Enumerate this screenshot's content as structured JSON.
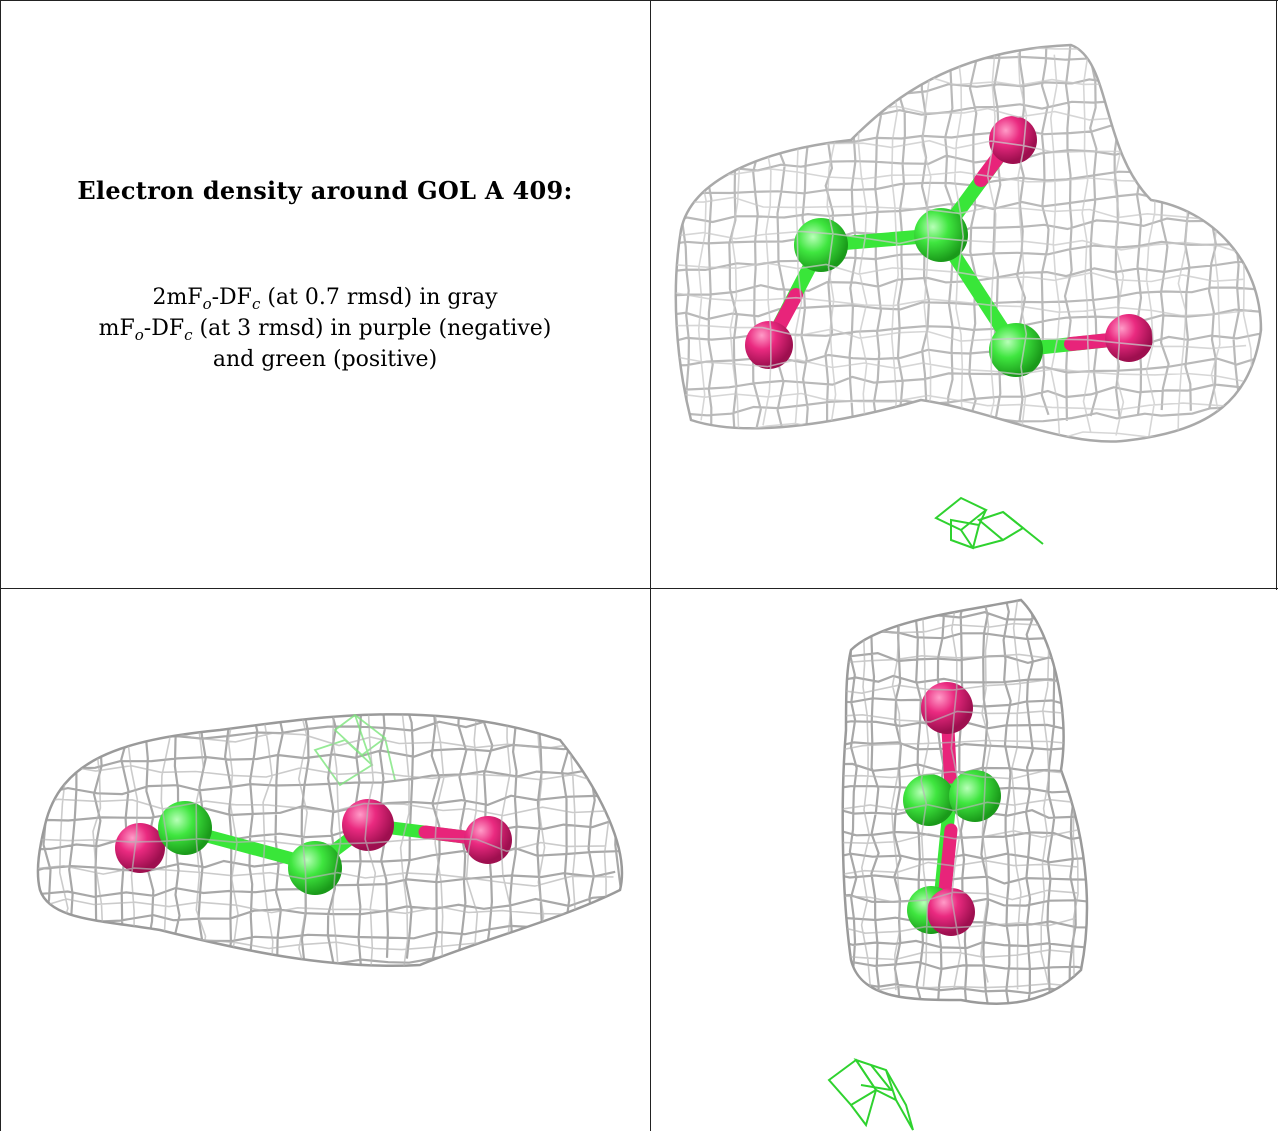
{
  "panel_text": {
    "title": "Electron density around GOL A 409:",
    "line1_prefix": "2mF",
    "line1_sub1": "o",
    "line1_mid": "-DF",
    "line1_sub2": "c",
    "line1_suffix": " (at 0.7 rmsd) in gray",
    "line2_prefix": "mF",
    "line2_sub1": "o",
    "line2_mid": "-DF",
    "line2_sub2": "c",
    "line2_suffix": " (at 3 rmsd) in purple (negative)",
    "line3": "and green (positive)"
  },
  "colors": {
    "mesh_gray": "#b9b9b9",
    "mesh_dark": "#8f8f8f",
    "carbon_green": "#39e639",
    "oxygen_pink": "#e8247a",
    "positive_density_green": "#2fd22f",
    "grid_line": "#222222"
  },
  "views": [
    {
      "name": "top-right view"
    },
    {
      "name": "bottom-left view"
    },
    {
      "name": "bottom-right view"
    }
  ]
}
